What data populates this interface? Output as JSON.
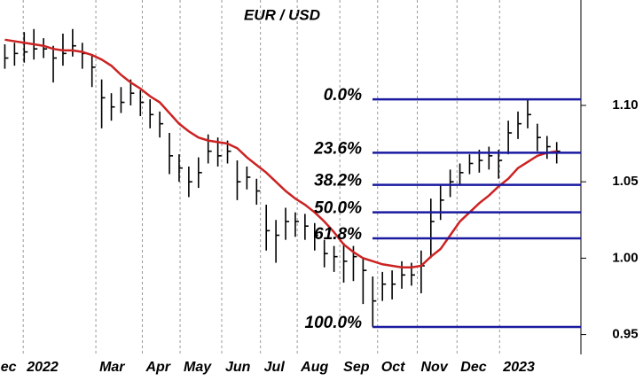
{
  "chart_data": {
    "type": "ohlc",
    "title": "EUR / USD",
    "x": [
      0,
      1,
      2,
      3,
      4,
      5,
      6,
      7,
      8,
      9,
      10,
      11,
      12,
      13,
      14,
      15,
      16,
      17,
      18,
      19,
      20,
      21,
      22,
      23,
      24,
      25,
      26,
      27,
      28,
      29,
      30,
      31,
      32,
      33,
      34,
      35,
      36,
      37,
      38,
      39,
      40,
      41,
      42,
      43,
      44,
      45,
      46,
      47,
      48,
      49,
      50,
      51,
      52,
      53,
      54,
      55,
      56,
      57
    ],
    "high": [
      1.14,
      1.141,
      1.148,
      1.15,
      1.144,
      1.139,
      1.147,
      1.15,
      1.141,
      1.133,
      1.117,
      1.108,
      1.112,
      1.117,
      1.11,
      1.104,
      1.096,
      1.082,
      1.068,
      1.06,
      1.066,
      1.081,
      1.079,
      1.077,
      1.064,
      1.06,
      1.052,
      1.035,
      1.025,
      1.033,
      1.03,
      1.029,
      1.023,
      1.012,
      1.008,
      1.01,
      1.008,
      1.0,
      0.988,
      0.991,
      0.992,
      0.998,
      0.997,
      1.005,
      1.039,
      1.048,
      1.058,
      1.062,
      1.068,
      1.071,
      1.073,
      1.071,
      1.09,
      1.096,
      1.104,
      1.088,
      1.08,
      1.076
    ],
    "low": [
      1.124,
      1.126,
      1.128,
      1.13,
      1.131,
      1.115,
      1.126,
      1.132,
      1.124,
      1.112,
      1.085,
      1.09,
      1.095,
      1.1,
      1.093,
      1.085,
      1.079,
      1.055,
      1.05,
      1.04,
      1.046,
      1.062,
      1.06,
      1.062,
      1.038,
      1.045,
      1.035,
      1.005,
      0.997,
      1.012,
      1.014,
      1.012,
      1.005,
      0.994,
      0.991,
      0.984,
      0.985,
      0.97,
      0.955,
      0.972,
      0.973,
      0.98,
      0.982,
      0.977,
      1.0,
      1.025,
      1.04,
      1.048,
      1.055,
      1.056,
      1.058,
      1.052,
      1.068,
      1.078,
      1.085,
      1.07,
      1.065,
      1.062
    ],
    "close": [
      1.131,
      1.134,
      1.135,
      1.137,
      1.137,
      1.131,
      1.134,
      1.139,
      1.134,
      1.125,
      1.105,
      1.099,
      1.102,
      1.108,
      1.102,
      1.094,
      1.088,
      1.067,
      1.059,
      1.05,
      1.056,
      1.07,
      1.067,
      1.07,
      1.05,
      1.053,
      1.044,
      1.018,
      1.015,
      1.024,
      1.024,
      1.021,
      1.015,
      1.003,
      1.001,
      0.998,
      1.001,
      0.992,
      0.972,
      0.983,
      0.983,
      0.989,
      0.989,
      0.995,
      1.024,
      1.038,
      1.05,
      1.056,
      1.062,
      1.064,
      1.067,
      1.064,
      1.082,
      1.088,
      1.094,
      1.079,
      1.073,
      1.07
    ],
    "color": "#000000",
    "moving_average": {
      "color": "#cc2222",
      "values": [
        1.143,
        1.142,
        1.141,
        1.14,
        1.139,
        1.137,
        1.136,
        1.136,
        1.135,
        1.133,
        1.13,
        1.126,
        1.12,
        1.115,
        1.111,
        1.106,
        1.102,
        1.095,
        1.088,
        1.083,
        1.079,
        1.077,
        1.076,
        1.075,
        1.072,
        1.066,
        1.061,
        1.056,
        1.05,
        1.044,
        1.039,
        1.035,
        1.03,
        1.024,
        1.017,
        1.009,
        1.004,
        1.0,
        0.998,
        0.996,
        0.995,
        0.994,
        0.994,
        0.995,
        1.001,
        1.006,
        1.015,
        1.024,
        1.03,
        1.036,
        1.041,
        1.047,
        1.052,
        1.059,
        1.063,
        1.067,
        1.069,
        1.07
      ]
    },
    "fib_levels": {
      "color": "#1a1aa0",
      "levels": [
        {
          "label": "0.0%",
          "value": 1.104
        },
        {
          "label": "23.6%",
          "value": 1.069
        },
        {
          "label": "38.2%",
          "value": 1.048
        },
        {
          "label": "50.0%",
          "value": 1.03
        },
        {
          "label": "61.8%",
          "value": 1.013
        },
        {
          "label": "100.0%",
          "value": 0.955
        }
      ]
    },
    "xlim": [
      -0.5,
      59.5
    ],
    "xticks": [
      {
        "value": -0.8,
        "label": "ec"
      },
      {
        "value": 1.9,
        "label": "2022"
      },
      {
        "value": 9.4,
        "label": "Mar"
      },
      {
        "value": 14.2,
        "label": "Apr"
      },
      {
        "value": 18.1,
        "label": "May"
      },
      {
        "value": 22.4,
        "label": "Jun"
      },
      {
        "value": 26.4,
        "label": "Jul"
      },
      {
        "value": 30.2,
        "label": "Aug"
      },
      {
        "value": 34.6,
        "label": "Sep"
      },
      {
        "value": 38.5,
        "label": "Oct"
      },
      {
        "value": 42.6,
        "label": "Nov"
      },
      {
        "value": 46.7,
        "label": "Dec"
      },
      {
        "value": 51.1,
        "label": "2023"
      }
    ],
    "ylim": [
      0.937,
      1.169
    ],
    "yticks": [
      0.95,
      {
        "value": 1.0,
        "label": "1.00"
      },
      1.05,
      {
        "value": 1.1,
        "label": "1.10"
      }
    ],
    "y_axis_side": "right",
    "grid": true
  }
}
